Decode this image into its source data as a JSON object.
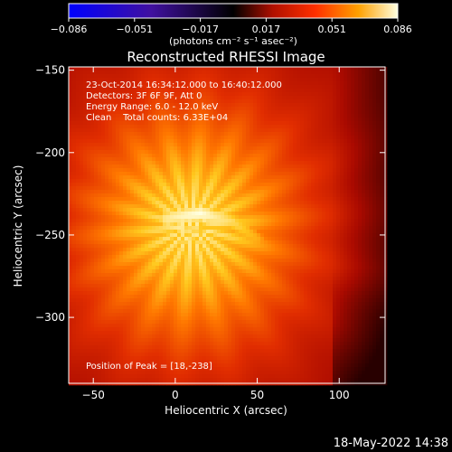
{
  "title": "Reconstructed RHESSI Image",
  "colorbar": {
    "ticks": [
      "-0.086",
      "-0.051",
      "-0.017",
      "0.017",
      "0.051",
      "0.086"
    ],
    "unit_label": "(photons cm⁻² s⁻¹ asec⁻²)",
    "colormap": "heat-blue-negative"
  },
  "info_lines": [
    "23-Oct-2014 16:34:12.000 to 16:40:12.000",
    "Detectors: 3F 6F 9F, Att 0",
    "Energy Range: 6.0 - 12.0 keV",
    "Clean    Total counts: 6.33E+04"
  ],
  "peak_text": "Position of Peak = [18,-238]",
  "footer_date": "18-May-2022 14:38",
  "chart_data": {
    "type": "heatmap",
    "title": "Reconstructed RHESSI Image",
    "xlabel": "Heliocentric X (arcsec)",
    "ylabel": "Heliocentric Y (arcsec)",
    "xlim": [
      -65,
      128
    ],
    "ylim": [
      -340,
      -148
    ],
    "x_ticks": [
      -50,
      0,
      50,
      100
    ],
    "y_ticks": [
      -150,
      -200,
      -250,
      -300
    ],
    "x_tick_labels": [
      "−50",
      "0",
      "50",
      "100"
    ],
    "y_tick_labels": [
      "−150",
      "−200",
      "−250",
      "−300"
    ],
    "value_range": [
      -0.086,
      0.086
    ],
    "peak": {
      "x": 18,
      "y": -238
    },
    "arc_ridge": [
      {
        "x": -5,
        "y": -240,
        "intensity": 0.95
      },
      {
        "x": 15,
        "y": -237,
        "intensity": 1.0
      },
      {
        "x": 35,
        "y": -242,
        "intensity": 0.9
      },
      {
        "x": 50,
        "y": -253,
        "intensity": 0.8
      },
      {
        "x": 0,
        "y": -258,
        "intensity": 0.75
      },
      {
        "x": -5,
        "y": -275,
        "intensity": 0.7
      },
      {
        "x": 0,
        "y": -295,
        "intensity": 0.6
      },
      {
        "x": 8,
        "y": -310,
        "intensity": 0.5
      }
    ]
  }
}
